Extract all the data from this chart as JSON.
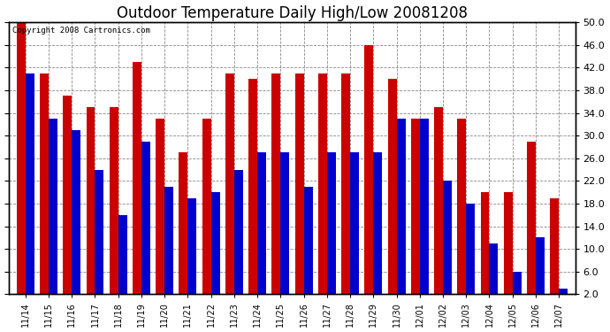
{
  "title": "Outdoor Temperature Daily High/Low 20081208",
  "copyright_text": "Copyright 2008 Cartronics.com",
  "dates": [
    "11/14",
    "11/15",
    "11/16",
    "11/17",
    "11/18",
    "11/19",
    "11/20",
    "11/21",
    "11/22",
    "11/23",
    "11/24",
    "11/25",
    "11/26",
    "11/27",
    "11/28",
    "11/29",
    "11/30",
    "12/01",
    "12/02",
    "12/03",
    "12/04",
    "12/05",
    "12/06",
    "12/07"
  ],
  "highs": [
    50,
    41,
    37,
    35,
    35,
    43,
    33,
    27,
    33,
    41,
    40,
    41,
    41,
    41,
    41,
    46,
    40,
    33,
    35,
    33,
    20,
    20,
    29,
    19
  ],
  "lows": [
    41,
    33,
    31,
    24,
    16,
    29,
    21,
    19,
    20,
    24,
    27,
    27,
    21,
    27,
    27,
    27,
    33,
    33,
    22,
    18,
    11,
    6,
    12,
    3
  ],
  "high_color": "#cc0000",
  "low_color": "#0000cc",
  "background_color": "#ffffff",
  "grid_color": "#888888",
  "title_fontsize": 12,
  "ylim_min": 2.0,
  "ylim_max": 50.0,
  "yticks": [
    2.0,
    6.0,
    10.0,
    14.0,
    18.0,
    22.0,
    26.0,
    30.0,
    34.0,
    38.0,
    42.0,
    46.0,
    50.0
  ],
  "bar_width": 0.38
}
